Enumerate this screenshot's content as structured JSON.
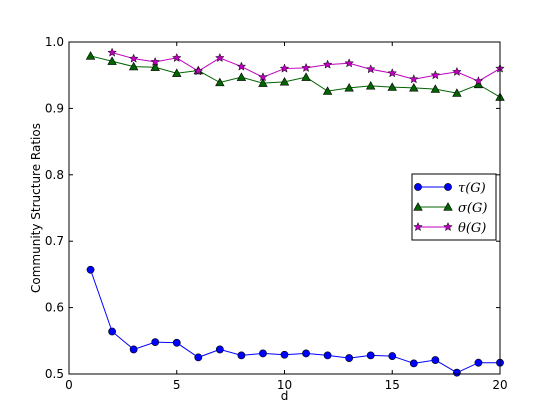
{
  "chart_data": {
    "type": "line",
    "title": "",
    "xlabel": "d",
    "ylabel": "Community Structure Ratios",
    "xlim": [
      0,
      20
    ],
    "ylim": [
      0.5,
      1.0
    ],
    "xticks": [
      0,
      5,
      10,
      15,
      20
    ],
    "yticks": [
      0.5,
      0.6,
      0.7,
      0.8,
      0.9,
      1.0
    ],
    "xtick_labels": [
      "0",
      "5",
      "10",
      "15",
      "20"
    ],
    "ytick_labels": [
      "0.5",
      "0.6",
      "0.7",
      "0.8",
      "0.9",
      "1.0"
    ],
    "grid": false,
    "legend_position": "right",
    "series": [
      {
        "name": "τ(G)",
        "color": "#0000ff",
        "marker": "circle",
        "x": [
          1,
          2,
          3,
          4,
          5,
          6,
          7,
          8,
          9,
          10,
          11,
          12,
          13,
          14,
          15,
          16,
          17,
          18,
          19,
          20
        ],
        "values": [
          0.657,
          0.564,
          0.537,
          0.548,
          0.547,
          0.525,
          0.537,
          0.528,
          0.531,
          0.529,
          0.531,
          0.528,
          0.524,
          0.528,
          0.527,
          0.516,
          0.521,
          0.502,
          0.517,
          0.517
        ]
      },
      {
        "name": "σ(G)",
        "color": "#006400",
        "marker": "triangle",
        "x": [
          1,
          2,
          3,
          4,
          5,
          6,
          7,
          8,
          9,
          10,
          11,
          12,
          13,
          14,
          15,
          16,
          17,
          18,
          19,
          20
        ],
        "values": [
          0.979,
          0.971,
          0.963,
          0.962,
          0.953,
          0.957,
          0.939,
          0.947,
          0.938,
          0.94,
          0.947,
          0.926,
          0.931,
          0.934,
          0.932,
          0.931,
          0.929,
          0.923,
          0.936,
          0.917
        ]
      },
      {
        "name": "θ(G)",
        "color": "#bf00bf",
        "marker": "star",
        "x": [
          2,
          3,
          4,
          5,
          6,
          7,
          8,
          9,
          10,
          11,
          12,
          13,
          14,
          15,
          16,
          17,
          18,
          19,
          20
        ],
        "values": [
          0.984,
          0.975,
          0.97,
          0.976,
          0.956,
          0.976,
          0.963,
          0.947,
          0.96,
          0.961,
          0.966,
          0.968,
          0.959,
          0.953,
          0.944,
          0.95,
          0.955,
          0.941,
          0.96
        ]
      }
    ]
  }
}
